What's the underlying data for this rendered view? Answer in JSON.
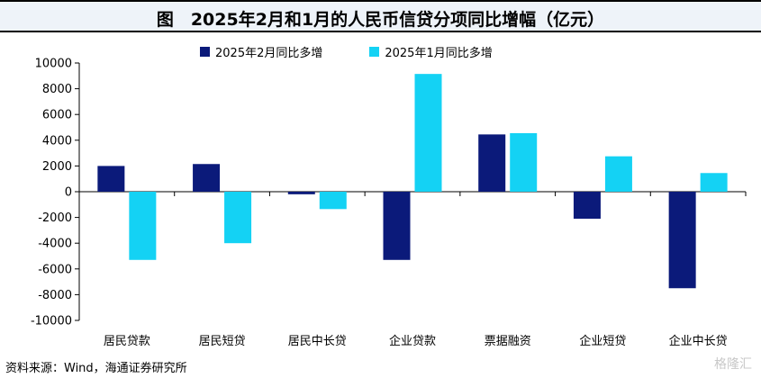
{
  "title": "图　2025年2月和1月的人民币信贷分项同比增幅（亿元）",
  "source": "资料来源：Wind，海通证券研究所",
  "watermark": "格隆汇",
  "colors": {
    "series1": "#0b1a7a",
    "series2": "#14d2f4",
    "title_bg": "#eef3f9"
  },
  "chart_data": {
    "type": "bar",
    "categories": [
      "居民贷款",
      "居民短贷",
      "居民中长贷",
      "企业贷款",
      "票据融资",
      "企业短贷",
      "企业中长贷"
    ],
    "series": [
      {
        "name": "2025年2月同比多增",
        "values": [
          2000,
          2150,
          -200,
          -5300,
          4450,
          -2100,
          -7500
        ]
      },
      {
        "name": "2025年1月同比多增",
        "values": [
          -5300,
          -4000,
          -1350,
          9150,
          4550,
          2750,
          1450
        ]
      }
    ],
    "ylim": [
      -10000,
      10000
    ],
    "yticks": [
      10000,
      8000,
      6000,
      4000,
      2000,
      0,
      -2000,
      -4000,
      -6000,
      -8000,
      -10000
    ],
    "xlabel": "",
    "ylabel": "",
    "legend": "top",
    "grid": false
  }
}
